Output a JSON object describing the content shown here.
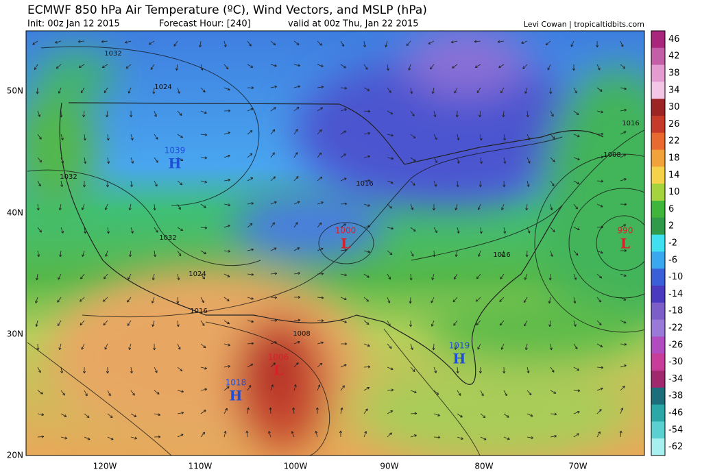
{
  "header": {
    "title": "ECMWF 850 hPa Air Temperature (ºC), Wind Vectors, and MSLP (hPa)",
    "init": "Init: 00z Jan 12 2015",
    "forecast_hour": "Forecast Hour: [240]",
    "valid": "valid at 00z Thu, Jan 22 2015",
    "credit": "Levi Cowan | tropicaltidbits.com"
  },
  "axes": {
    "lat_labels": [
      "50N",
      "40N",
      "30N",
      "20N"
    ],
    "lon_labels": [
      "120W",
      "110W",
      "100W",
      "90W",
      "80W",
      "70W"
    ]
  },
  "colorbar": {
    "labels": [
      46,
      42,
      38,
      34,
      30,
      26,
      22,
      18,
      14,
      10,
      6,
      2,
      -2,
      -6,
      -10,
      -14,
      -18,
      -22,
      -26,
      -30,
      -34,
      -38,
      -46,
      -54,
      -62
    ]
  },
  "pressure_centers": [
    {
      "letter": "H",
      "value": "1039"
    },
    {
      "letter": "L",
      "value": "1000"
    },
    {
      "letter": "L",
      "value": "990"
    },
    {
      "letter": "L",
      "value": "1006"
    },
    {
      "letter": "H",
      "value": "1018"
    },
    {
      "letter": "H",
      "value": "1019"
    }
  ],
  "isobar_labels": [
    "1032",
    "1024",
    "1032",
    "1032",
    "1024",
    "1016",
    "1008",
    "1016",
    "1016",
    "1016",
    "1008"
  ]
}
